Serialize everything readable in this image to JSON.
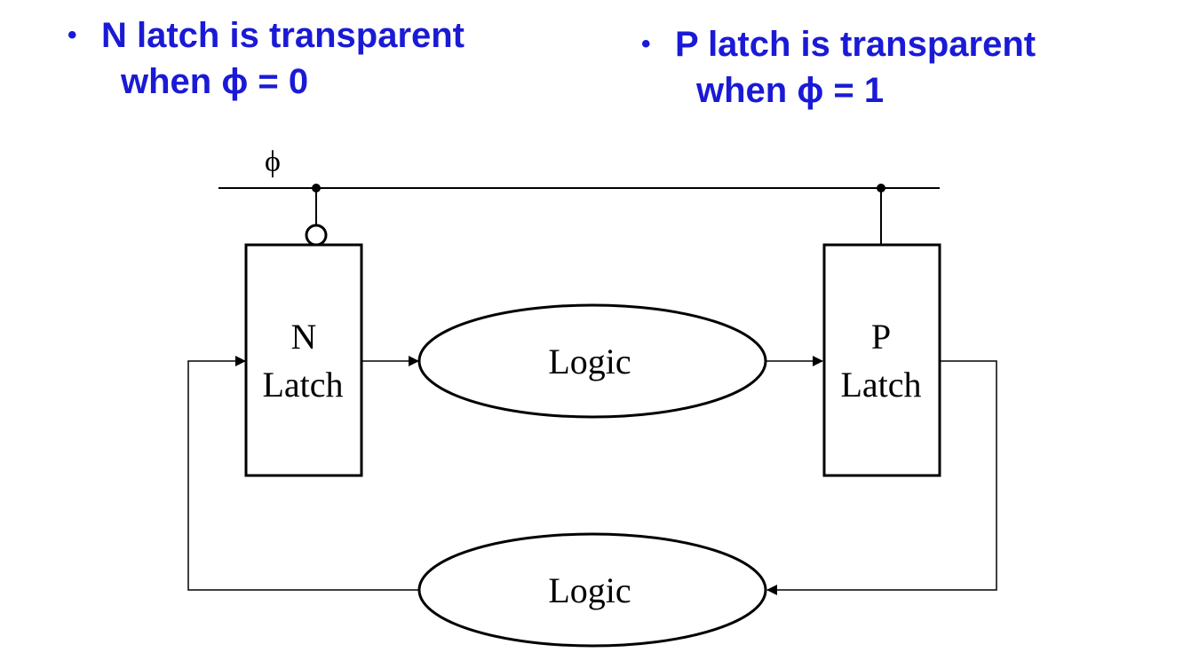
{
  "bullets": {
    "left": {
      "line1": "N latch is transparent",
      "line2": "when ϕ = 0"
    },
    "right": {
      "line1": "P latch is transparent",
      "line2": "when ϕ = 1"
    }
  },
  "diagram": {
    "clock_label": "ϕ",
    "n_latch": {
      "line1": "N",
      "line2": "Latch"
    },
    "p_latch": {
      "line1": "P",
      "line2": "Latch"
    },
    "logic_top": "Logic",
    "logic_bottom": "Logic"
  },
  "colors": {
    "bullet_text": "#1a1ad6",
    "diagram_stroke": "#000000"
  }
}
